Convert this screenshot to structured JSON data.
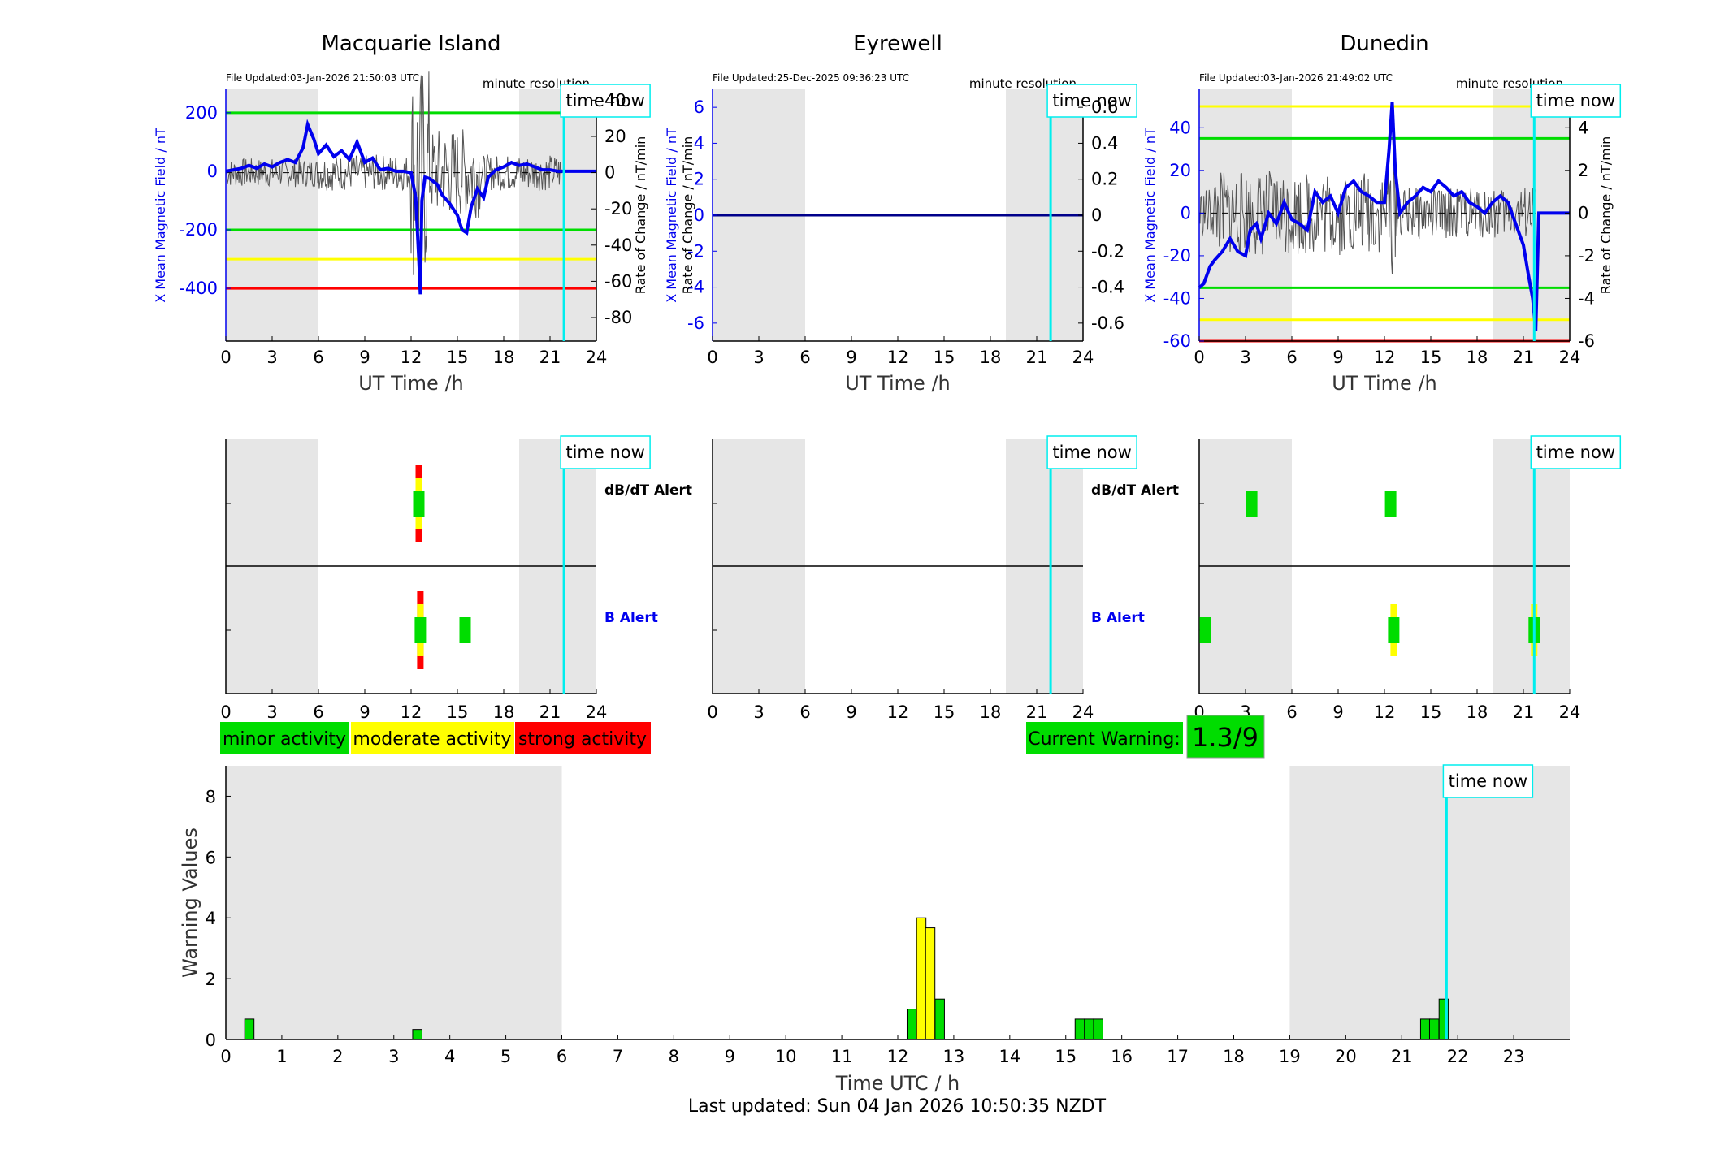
{
  "colors": {
    "bx": "#0000ee",
    "roc": "#555555",
    "green": "#00dd00",
    "yellow": "#ffff00",
    "red": "#ff0000",
    "cyan": "#00eeee",
    "shade": "#e6e6e6"
  },
  "top_charts": [
    {
      "title": "Macquarie Island",
      "file_updated": "File Updated:03-Jan-2026 21:50:03 UTC",
      "resolution": "minute resolution",
      "time_now_label": "time now",
      "ylabel_left": "X Mean Magnetic Field / nT",
      "ylabel_right": "Rate of Change / nT/min",
      "xlabel": "UT Time /h",
      "xticks": [
        "0",
        "3",
        "6",
        "9",
        "12",
        "15",
        "18",
        "21",
        "24"
      ],
      "yticks_left": [
        "200",
        "0",
        "-200",
        "-400"
      ],
      "yticks_right": [
        "40",
        "20",
        "0",
        "-20",
        "-40",
        "-60",
        "-80"
      ]
    },
    {
      "title": "Eyrewell",
      "file_updated": "File Updated:25-Dec-2025 09:36:23 UTC",
      "resolution": "minute resolution",
      "time_now_label": "time now",
      "ylabel_left": "X Mean Magnetic Field / nT",
      "ylabel_right": "Rate of Change / nT/min",
      "xlabel": "UT Time /h",
      "xticks": [
        "0",
        "3",
        "6",
        "9",
        "12",
        "15",
        "18",
        "21",
        "24"
      ],
      "yticks_left": [
        "6",
        "4",
        "2",
        "0",
        "-2",
        "-4",
        "-6"
      ],
      "yticks_right": [
        "0.6",
        "0.4",
        "0.2",
        "0",
        "-0.2",
        "-0.4",
        "-0.6"
      ]
    },
    {
      "title": "Dunedin",
      "file_updated": "File Updated:03-Jan-2026 21:49:02 UTC",
      "resolution": "minute resolution",
      "time_now_label": "time now",
      "ylabel_left": "X Mean Magnetic Field / nT",
      "ylabel_right": "Rate of Change / nT/min",
      "xlabel": "UT Time /h",
      "xticks": [
        "0",
        "3",
        "6",
        "9",
        "12",
        "15",
        "18",
        "21",
        "24"
      ],
      "yticks_left": [
        "40",
        "20",
        "0",
        "-20",
        "-40",
        "-60"
      ],
      "yticks_right": [
        "4",
        "2",
        "0",
        "-2",
        "-4",
        "-6"
      ]
    }
  ],
  "alert_panels": {
    "dbdt_label": "dB/dT Alert",
    "b_label": "B Alert",
    "time_now_label": "time now",
    "xticks": [
      "0",
      "3",
      "6",
      "9",
      "12",
      "15",
      "18",
      "21",
      "24"
    ]
  },
  "legend": {
    "minor": "minor activity",
    "moderate": "moderate activity",
    "strong": "strong activity",
    "current_warning_label": "Current Warning:",
    "current_warning_value": "1.3/9"
  },
  "bottom": {
    "ylabel": "Warning Values",
    "xlabel": "Time UTC / h",
    "time_now_label": "time now",
    "yticks": [
      "0",
      "2",
      "4",
      "6",
      "8"
    ],
    "xticks": [
      "0",
      "1",
      "2",
      "3",
      "4",
      "5",
      "6",
      "7",
      "8",
      "9",
      "10",
      "11",
      "12",
      "13",
      "14",
      "15",
      "16",
      "17",
      "18",
      "19",
      "20",
      "21",
      "22",
      "23"
    ]
  },
  "footer": "Last updated: Sun 04 Jan 2026 10:50:35 NZDT",
  "chart_data": [
    {
      "type": "line",
      "title": "Macquarie Island",
      "xlabel": "UT Time /h",
      "ylabel": "X Mean Magnetic Field / nT",
      "y2label": "Rate of Change / nT/min",
      "xlim": [
        0,
        24
      ],
      "ylim": [
        -580,
        280
      ],
      "y2lim": [
        -93,
        46
      ],
      "shaded_x": [
        [
          0,
          6
        ],
        [
          19,
          24
        ]
      ],
      "time_now": 21.9,
      "thresholds": [
        {
          "value": 200,
          "color": "green"
        },
        {
          "value": -200,
          "color": "green"
        },
        {
          "value": -300,
          "color": "yellow"
        },
        {
          "value": -400,
          "color": "red"
        }
      ],
      "series": [
        {
          "x": [
            0,
            0.5,
            1,
            1.5,
            2,
            2.5,
            3,
            3.5,
            4,
            4.5,
            5,
            5.3,
            5.7,
            6,
            6.5,
            7,
            7.5,
            8,
            8.5,
            9,
            9.5,
            10,
            10.5,
            11,
            11.5,
            12,
            12.3,
            12.5,
            12.6,
            12.7,
            12.9,
            13.2,
            13.7,
            14,
            14.5,
            15,
            15.3,
            15.6,
            15.9,
            16.3,
            16.7,
            17,
            17.5,
            18,
            18.5,
            19,
            19.5,
            20,
            20.5,
            21,
            21.5,
            22,
            24
          ],
          "y": [
            0,
            5,
            10,
            20,
            10,
            25,
            15,
            30,
            40,
            30,
            80,
            160,
            110,
            60,
            90,
            50,
            70,
            40,
            100,
            30,
            45,
            5,
            10,
            0,
            0,
            -5,
            -90,
            -300,
            -420,
            -100,
            -20,
            -25,
            -45,
            -80,
            -110,
            -150,
            -200,
            -210,
            -120,
            -60,
            -90,
            -20,
            5,
            15,
            30,
            20,
            25,
            15,
            5,
            5,
            0,
            0,
            0
          ]
        }
      ]
    },
    {
      "type": "line",
      "title": "Eyrewell",
      "xlabel": "UT Time /h",
      "ylabel": "X Mean Magnetic Field / nT",
      "y2label": "Rate of Change / nT/min",
      "xlim": [
        0,
        24
      ],
      "ylim": [
        -7,
        7
      ],
      "y2lim": [
        -0.7,
        0.7
      ],
      "shaded_x": [
        [
          0,
          6
        ],
        [
          19,
          24
        ]
      ],
      "time_now": 21.9,
      "series": [
        {
          "x": [
            0,
            24
          ],
          "y": [
            0,
            0
          ]
        }
      ]
    },
    {
      "type": "line",
      "title": "Dunedin",
      "xlabel": "UT Time /h",
      "ylabel": "X Mean Magnetic Field / nT",
      "y2label": "Rate of Change / nT/min",
      "xlim": [
        0,
        24
      ],
      "ylim": [
        -60,
        58
      ],
      "y2lim": [
        -6,
        5.8
      ],
      "shaded_x": [
        [
          0,
          6
        ],
        [
          19,
          24
        ]
      ],
      "time_now": 21.7,
      "thresholds": [
        {
          "value": 50,
          "color": "yellow"
        },
        {
          "value": 35,
          "color": "green"
        },
        {
          "value": -35,
          "color": "green"
        },
        {
          "value": -50,
          "color": "yellow"
        },
        {
          "value": -60,
          "color": "red"
        }
      ],
      "series": [
        {
          "x": [
            0,
            0.3,
            0.7,
            1,
            1.5,
            2,
            2.5,
            3,
            3.3,
            3.7,
            4,
            4.5,
            5,
            5.5,
            6,
            6.5,
            7,
            7.5,
            8,
            8.5,
            9,
            9.5,
            10,
            10.5,
            11,
            11.5,
            12,
            12.3,
            12.5,
            12.7,
            13,
            13.5,
            14,
            14.5,
            15,
            15.5,
            16,
            16.5,
            17,
            17.5,
            18,
            18.5,
            19,
            19.5,
            20,
            20.5,
            21,
            21.3,
            21.6,
            21.8,
            22,
            24
          ],
          "y": [
            -35,
            -33,
            -25,
            -22,
            -18,
            -12,
            -18,
            -20,
            -8,
            -5,
            -12,
            0,
            -5,
            5,
            -3,
            -5,
            -8,
            10,
            5,
            8,
            0,
            12,
            15,
            10,
            8,
            5,
            5,
            30,
            52,
            20,
            0,
            5,
            8,
            12,
            10,
            15,
            12,
            8,
            10,
            5,
            3,
            0,
            5,
            8,
            5,
            -5,
            -15,
            -28,
            -40,
            -55,
            0,
            0
          ]
        }
      ]
    }
  ],
  "alert_data": [
    {
      "station": "Macquarie Island",
      "dbdt": [
        {
          "x": 12.5,
          "level": 3
        }
      ],
      "b": [
        {
          "x": 12.6,
          "level": 3
        },
        {
          "x": 15.5,
          "level": 1
        }
      ]
    },
    {
      "station": "Eyrewell",
      "dbdt": [],
      "b": []
    },
    {
      "station": "Dunedin",
      "dbdt": [
        {
          "x": 3.4,
          "level": 1
        },
        {
          "x": 12.4,
          "level": 1
        }
      ],
      "b": [
        {
          "x": 0.4,
          "level": 1
        },
        {
          "x": 12.6,
          "level": 2
        },
        {
          "x": 21.7,
          "level": 2
        }
      ]
    }
  ],
  "warning_chart": {
    "type": "bar",
    "xlabel": "Time UTC / h",
    "ylabel": "Warning Values",
    "xlim": [
      0,
      24
    ],
    "ylim": [
      0,
      9
    ],
    "shaded_x": [
      [
        0,
        6
      ],
      [
        19,
        24
      ]
    ],
    "time_now": 21.8,
    "bars": [
      {
        "x": 0.42,
        "value": 0.67,
        "color": "green"
      },
      {
        "x": 3.42,
        "value": 0.33,
        "color": "green"
      },
      {
        "x": 12.25,
        "value": 1.0,
        "color": "green"
      },
      {
        "x": 12.42,
        "value": 4.0,
        "color": "yellow"
      },
      {
        "x": 12.58,
        "value": 3.67,
        "color": "yellow"
      },
      {
        "x": 12.75,
        "value": 1.33,
        "color": "green"
      },
      {
        "x": 15.25,
        "value": 0.67,
        "color": "green"
      },
      {
        "x": 15.42,
        "value": 0.67,
        "color": "green"
      },
      {
        "x": 15.58,
        "value": 0.67,
        "color": "green"
      },
      {
        "x": 21.42,
        "value": 0.67,
        "color": "green"
      },
      {
        "x": 21.58,
        "value": 0.67,
        "color": "green"
      },
      {
        "x": 21.75,
        "value": 1.33,
        "color": "green"
      }
    ]
  }
}
